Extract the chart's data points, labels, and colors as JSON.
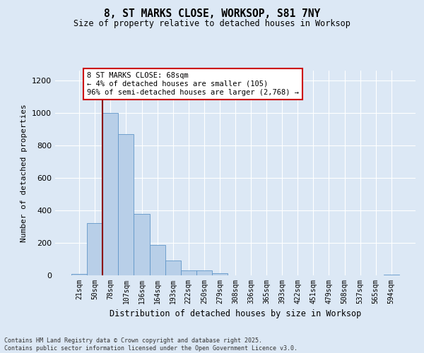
{
  "title_line1": "8, ST MARKS CLOSE, WORKSOP, S81 7NY",
  "title_line2": "Size of property relative to detached houses in Worksop",
  "xlabel": "Distribution of detached houses by size in Worksop",
  "ylabel": "Number of detached properties",
  "categories": [
    "21sqm",
    "50sqm",
    "78sqm",
    "107sqm",
    "136sqm",
    "164sqm",
    "193sqm",
    "222sqm",
    "250sqm",
    "279sqm",
    "308sqm",
    "336sqm",
    "365sqm",
    "393sqm",
    "422sqm",
    "451sqm",
    "479sqm",
    "508sqm",
    "537sqm",
    "565sqm",
    "594sqm"
  ],
  "values": [
    10,
    320,
    1000,
    870,
    380,
    185,
    90,
    30,
    30,
    12,
    0,
    0,
    0,
    0,
    0,
    0,
    0,
    0,
    0,
    0,
    5
  ],
  "bar_color": "#b8cfe8",
  "bar_edge_color": "#6096c8",
  "vline_color": "#8b0000",
  "annotation_text": "8 ST MARKS CLOSE: 68sqm\n← 4% of detached houses are smaller (105)\n96% of semi-detached houses are larger (2,768) →",
  "annotation_box_color": "#ffffff",
  "annotation_box_edge_color": "#cc0000",
  "ylim": [
    0,
    1260
  ],
  "yticks": [
    0,
    200,
    400,
    600,
    800,
    1000,
    1200
  ],
  "background_color": "#dce8f5",
  "grid_color": "#ffffff",
  "footer_line1": "Contains HM Land Registry data © Crown copyright and database right 2025.",
  "footer_line2": "Contains public sector information licensed under the Open Government Licence v3.0.",
  "fig_width": 6.0,
  "fig_height": 5.0,
  "dpi": 100
}
